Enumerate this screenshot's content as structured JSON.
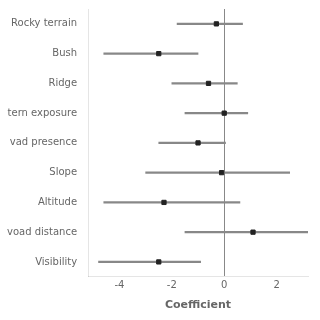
{
  "chart_data": {
    "type": "errorbar",
    "orientation": "horizontal",
    "categories": [
      "Rocky terrain",
      "Bush",
      "Ridge",
      "tern exposure",
      "vad presence",
      "Slope",
      "Altitude",
      "voad distance",
      "Visibility"
    ],
    "values": [
      -0.3,
      -2.5,
      -0.6,
      0.0,
      -1.0,
      -0.1,
      -2.3,
      1.1,
      -2.5
    ],
    "ci_low": [
      -1.8,
      -4.6,
      -2.0,
      -1.5,
      -2.5,
      -3.0,
      -4.6,
      -1.5,
      -4.8
    ],
    "ci_high": [
      0.7,
      -1.0,
      0.5,
      0.9,
      0.05,
      2.5,
      0.6,
      3.2,
      -0.9
    ],
    "xlabel": "Coefficient",
    "xlim": [
      -5.2,
      3.2
    ],
    "xticks": [
      -4,
      -2,
      0,
      2
    ],
    "color": "#222222",
    "marker": "square",
    "grid": false
  }
}
